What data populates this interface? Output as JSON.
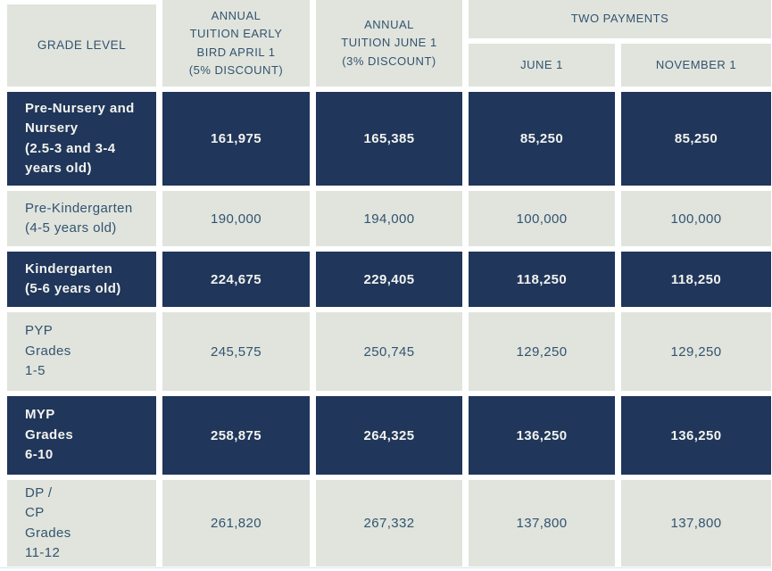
{
  "colors": {
    "dark_row_bg": "#20365a",
    "light_row_bg": "#e0e4dd",
    "dark_row_text": "#f2f3ef",
    "light_row_text": "#33536f",
    "gap": "#ffffff"
  },
  "header": {
    "grade_level": "GRADE LEVEL",
    "early_bird": "ANNUAL\nTUITION EARLY\nBIRD APRIL 1\n(5% discount)",
    "june1": "ANNUAL\nTUITION JUNE 1\n(3% discount)",
    "two_payments": "TWO PAYMENTS",
    "payment_june1": "JUNE 1",
    "payment_november1": "NOVEMBER 1"
  },
  "rows": [
    {
      "grade": "Pre-Nursery and\nNursery\n(2.5-3 and 3-4\nyears old)",
      "early_bird": "161,975",
      "june1": "165,385",
      "payment_june1": "85,250",
      "payment_november1": "85,250"
    },
    {
      "grade": "Pre-Kindergarten\n(4-5 years old)",
      "early_bird": "190,000",
      "june1": "194,000",
      "payment_june1": "100,000",
      "payment_november1": "100,000"
    },
    {
      "grade": "Kindergarten\n(5-6 years old)",
      "early_bird": "224,675",
      "june1": "229,405",
      "payment_june1": "118,250",
      "payment_november1": "118,250"
    },
    {
      "grade": "PYP\nGrades\n1-5",
      "early_bird": "245,575",
      "june1": "250,745",
      "payment_june1": "129,250",
      "payment_november1": "129,250"
    },
    {
      "grade": "MYP\nGrades\n6-10",
      "early_bird": "258,875",
      "june1": "264,325",
      "payment_june1": "136,250",
      "payment_november1": "136,250"
    },
    {
      "grade": "DP /\nCP\nGrades\n11-12",
      "early_bird": "261,820",
      "june1": "267,332",
      "payment_june1": "137,800",
      "payment_november1": "137,800"
    }
  ]
}
